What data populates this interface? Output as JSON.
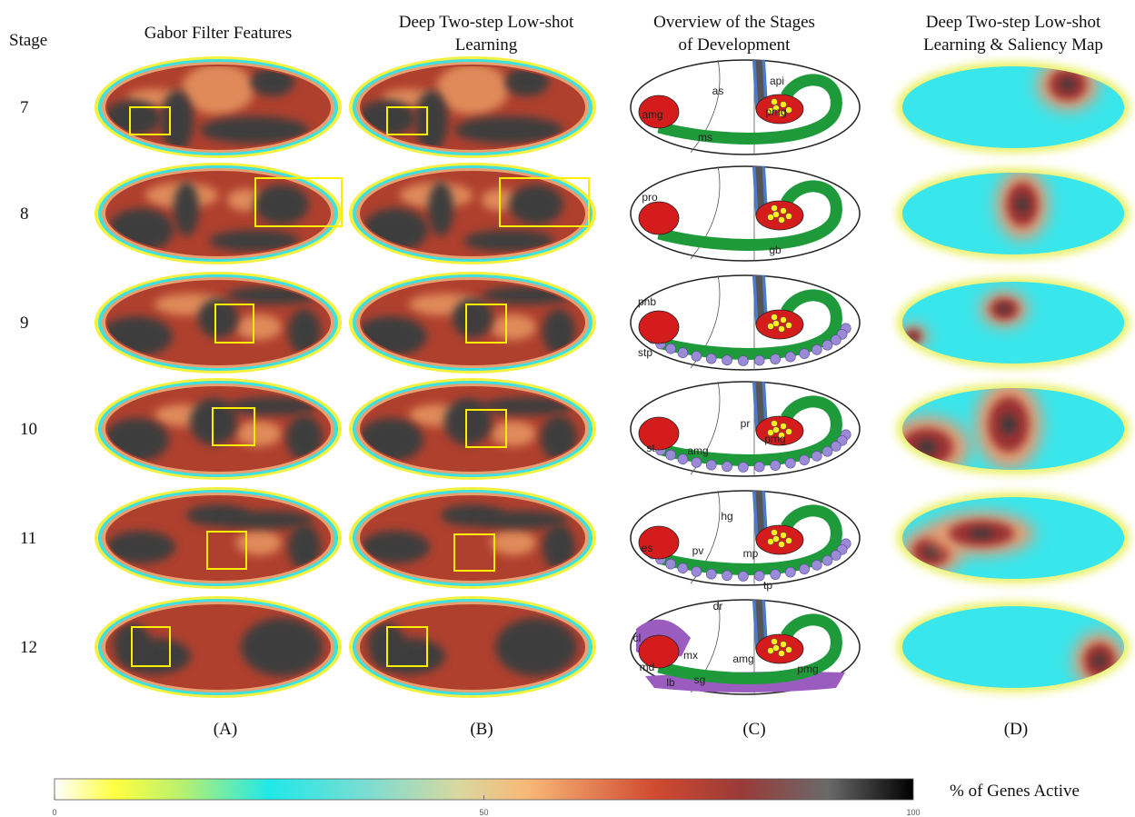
{
  "header": {
    "stage": "Stage",
    "columns": [
      [
        "Gabor Filter Features"
      ],
      [
        "Deep Two-step Low-shot",
        "Learning"
      ],
      [
        "Overview of the Stages",
        "of Development"
      ],
      [
        "Deep Two-step Low-shot",
        "Learning & Saliency Map"
      ]
    ]
  },
  "stages": [
    "7",
    "8",
    "9",
    "10",
    "11",
    "12"
  ],
  "panels": [
    "(A)",
    "(B)",
    "(C)",
    "(D)"
  ],
  "diagram_labels": [
    [
      "amg",
      "as",
      "api",
      "pmg",
      "ms"
    ],
    [
      "pro",
      "gb"
    ],
    [
      "pnb",
      "stp"
    ],
    [
      "st",
      "amg",
      "pr",
      "pmg"
    ],
    [
      "hg",
      "es",
      "pv",
      "mp",
      "tp"
    ],
    [
      "cl",
      "dr",
      "mx",
      "md",
      "lb",
      "sg",
      "amg",
      "pmg"
    ]
  ],
  "colorbar": {
    "label": "% of Genes Active",
    "range": [
      0,
      100
    ],
    "ticks": [
      0,
      50,
      100
    ]
  }
}
